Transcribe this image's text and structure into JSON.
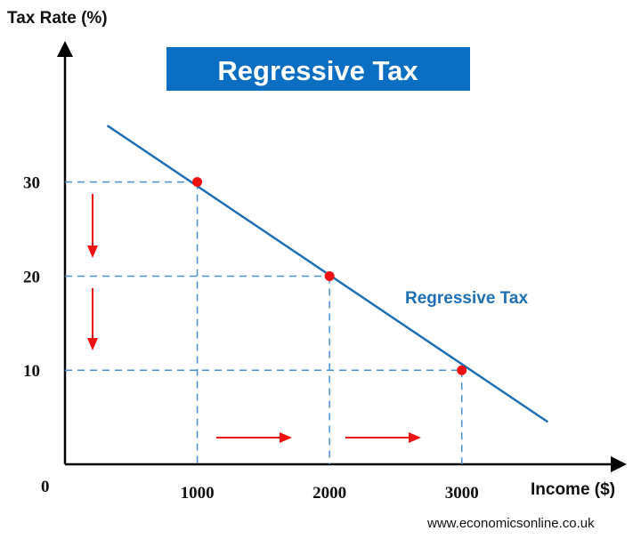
{
  "chart_data": {
    "type": "line",
    "title": "Regressive Tax",
    "xlabel": "Income ($)",
    "ylabel": "Tax Rate (%)",
    "origin_label": "0",
    "x_ticks": [
      1000,
      2000,
      3000
    ],
    "y_ticks": [
      10,
      20,
      30
    ],
    "xlim": [
      0,
      4200
    ],
    "ylim": [
      0,
      45
    ],
    "grid": false,
    "series": [
      {
        "name": "Regressive Tax",
        "x": [
          320,
          3650
        ],
        "y": [
          36,
          4.5
        ]
      }
    ],
    "highlighted_points": [
      {
        "x": 1000,
        "y": 30
      },
      {
        "x": 2000,
        "y": 20
      },
      {
        "x": 3000,
        "y": 10
      }
    ],
    "colors": {
      "line": "#1f6fb5",
      "points": "#ee1111",
      "banner": "#0a6fc2",
      "guides": "#4a90d9"
    },
    "source": "www.economicsonline.co.uk"
  }
}
